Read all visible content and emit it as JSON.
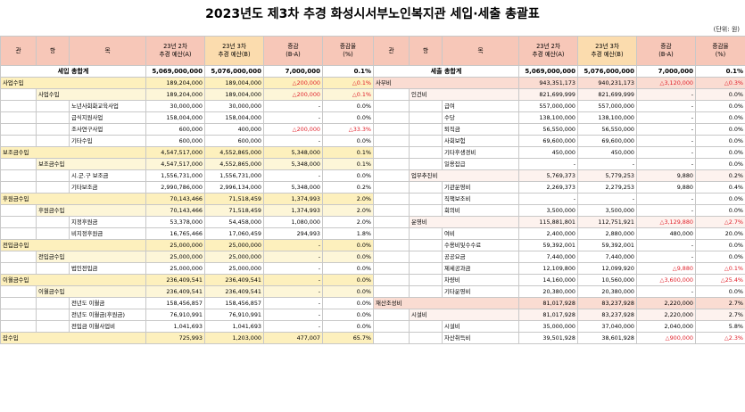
{
  "title": "2023년도 제3차 추경 화성시서부노인복지관 세입·세출 총괄표",
  "unit": "(단위: 원)",
  "headers_left": [
    "관",
    "항",
    "목",
    "23년 2차\n추경 예산(A)",
    "23년 3차\n추경 예산(B)",
    "증감\n(B-A)",
    "증감율\n(%)"
  ],
  "headers_right": [
    "관",
    "항",
    "목",
    "23년 2차\n추경 예산(A)",
    "23년 3차\n추경 예산(B)",
    "증감\n(B-A)",
    "증감율\n(%)"
  ],
  "left_total": {
    "label": "세입 총합계",
    "a": "5,069,000,000",
    "b": "5,076,000,000",
    "d": "7,000,000",
    "p": "0.1%"
  },
  "right_total": {
    "label": "세출 총합계",
    "a": "5,069,000,000",
    "b": "5,076,000,000",
    "d": "7,000,000",
    "p": "0.1%"
  },
  "left_rows": [
    {
      "lvl": 1,
      "gwan": "사업수입",
      "hang": "",
      "mok": "",
      "a": "189,204,000",
      "b": "189,004,000",
      "d": "△200,000",
      "p": "△0.1%",
      "red": true
    },
    {
      "lvl": 2,
      "gwan": "",
      "hang": "사업수입",
      "mok": "",
      "a": "189,204,000",
      "b": "189,004,000",
      "d": "△200,000",
      "p": "△0.1%",
      "red": true
    },
    {
      "lvl": 3,
      "gwan": "",
      "hang": "",
      "mok": "노년사회화교육사업",
      "a": "30,000,000",
      "b": "30,000,000",
      "d": "-",
      "p": "0.0%"
    },
    {
      "lvl": 3,
      "gwan": "",
      "hang": "",
      "mok": "급식지원사업",
      "a": "158,004,000",
      "b": "158,004,000",
      "d": "-",
      "p": "0.0%"
    },
    {
      "lvl": 3,
      "gwan": "",
      "hang": "",
      "mok": "조사연구사업",
      "a": "600,000",
      "b": "400,000",
      "d": "△200,000",
      "p": "△33.3%",
      "red": true
    },
    {
      "lvl": 3,
      "gwan": "",
      "hang": "",
      "mok": "기타수입",
      "a": "600,000",
      "b": "600,000",
      "d": "-",
      "p": "0.0%"
    },
    {
      "lvl": 1,
      "gwan": "보조금수입",
      "hang": "",
      "mok": "",
      "a": "4,547,517,000",
      "b": "4,552,865,000",
      "d": "5,348,000",
      "p": "0.1%"
    },
    {
      "lvl": 2,
      "gwan": "",
      "hang": "보조금수입",
      "mok": "",
      "a": "4,547,517,000",
      "b": "4,552,865,000",
      "d": "5,348,000",
      "p": "0.1%"
    },
    {
      "lvl": 3,
      "gwan": "",
      "hang": "",
      "mok": "시.군.구 보조금",
      "a": "1,556,731,000",
      "b": "1,556,731,000",
      "d": "-",
      "p": "0.0%"
    },
    {
      "lvl": 3,
      "gwan": "",
      "hang": "",
      "mok": "기타보조금",
      "a": "2,990,786,000",
      "b": "2,996,134,000",
      "d": "5,348,000",
      "p": "0.2%"
    },
    {
      "lvl": 1,
      "gwan": "후원금수입",
      "hang": "",
      "mok": "",
      "a": "70,143,466",
      "b": "71,518,459",
      "d": "1,374,993",
      "p": "2.0%"
    },
    {
      "lvl": 2,
      "gwan": "",
      "hang": "후원금수입",
      "mok": "",
      "a": "70,143,466",
      "b": "71,518,459",
      "d": "1,374,993",
      "p": "2.0%"
    },
    {
      "lvl": 3,
      "gwan": "",
      "hang": "",
      "mok": "지정후원금",
      "a": "53,378,000",
      "b": "54,458,000",
      "d": "1,080,000",
      "p": "2.0%"
    },
    {
      "lvl": 3,
      "gwan": "",
      "hang": "",
      "mok": "비지정후원금",
      "a": "16,765,466",
      "b": "17,060,459",
      "d": "294,993",
      "p": "1.8%"
    },
    {
      "lvl": 1,
      "gwan": "전입금수입",
      "hang": "",
      "mok": "",
      "a": "25,000,000",
      "b": "25,000,000",
      "d": "-",
      "p": "0.0%"
    },
    {
      "lvl": 2,
      "gwan": "",
      "hang": "전입금수입",
      "mok": "",
      "a": "25,000,000",
      "b": "25,000,000",
      "d": "-",
      "p": "0.0%"
    },
    {
      "lvl": 3,
      "gwan": "",
      "hang": "",
      "mok": "법인전입금",
      "a": "25,000,000",
      "b": "25,000,000",
      "d": "-",
      "p": "0.0%"
    },
    {
      "lvl": 1,
      "gwan": "이월금수입",
      "hang": "",
      "mok": "",
      "a": "236,409,541",
      "b": "236,409,541",
      "d": "-",
      "p": "0.0%"
    },
    {
      "lvl": 2,
      "gwan": "",
      "hang": "이월금수입",
      "mok": "",
      "a": "236,409,541",
      "b": "236,409,541",
      "d": "-",
      "p": "0.0%"
    },
    {
      "lvl": 3,
      "gwan": "",
      "hang": "",
      "mok": "전년도 이월금",
      "a": "158,456,857",
      "b": "158,456,857",
      "d": "-",
      "p": "0.0%"
    },
    {
      "lvl": 3,
      "gwan": "",
      "hang": "",
      "mok": "전년도 이월금(후원금)",
      "a": "76,910,991",
      "b": "76,910,991",
      "d": "-",
      "p": "0.0%"
    },
    {
      "lvl": 3,
      "gwan": "",
      "hang": "",
      "mok": "전입금 이월사업비",
      "a": "1,041,693",
      "b": "1,041,693",
      "d": "-",
      "p": "0.0%"
    },
    {
      "lvl": 1,
      "gwan": "잡수입",
      "hang": "",
      "mok": "",
      "a": "725,993",
      "b": "1,203,000",
      "d": "477,007",
      "p": "65.7%"
    }
  ],
  "right_rows": [
    {
      "lvl": 1,
      "gwan": "사무비",
      "hang": "",
      "mok": "",
      "a": "943,351,173",
      "b": "940,231,173",
      "d": "△3,120,000",
      "p": "△0.3%",
      "red": true
    },
    {
      "lvl": 2,
      "gwan": "",
      "hang": "인건비",
      "mok": "",
      "a": "821,699,999",
      "b": "821,699,999",
      "d": "-",
      "p": "0.0%"
    },
    {
      "lvl": 3,
      "gwan": "",
      "hang": "",
      "mok": "급여",
      "a": "557,000,000",
      "b": "557,000,000",
      "d": "-",
      "p": "0.0%"
    },
    {
      "lvl": 3,
      "gwan": "",
      "hang": "",
      "mok": "수당",
      "a": "138,100,000",
      "b": "138,100,000",
      "d": "-",
      "p": "0.0%"
    },
    {
      "lvl": 3,
      "gwan": "",
      "hang": "",
      "mok": "퇴직금",
      "a": "56,550,000",
      "b": "56,550,000",
      "d": "-",
      "p": "0.0%"
    },
    {
      "lvl": 3,
      "gwan": "",
      "hang": "",
      "mok": "사회보험",
      "a": "69,600,000",
      "b": "69,600,000",
      "d": "-",
      "p": "0.0%"
    },
    {
      "lvl": 3,
      "gwan": "",
      "hang": "",
      "mok": "기타후생경비",
      "a": "450,000",
      "b": "450,000",
      "d": "-",
      "p": "0.0%"
    },
    {
      "lvl": 3,
      "gwan": "",
      "hang": "",
      "mok": "일용잡급",
      "a": "-",
      "b": "-",
      "d": "-",
      "p": "0.0%"
    },
    {
      "lvl": 2,
      "gwan": "",
      "hang": "업무추진비",
      "mok": "",
      "a": "5,769,373",
      "b": "5,779,253",
      "d": "9,880",
      "p": "0.2%"
    },
    {
      "lvl": 3,
      "gwan": "",
      "hang": "",
      "mok": "기관운영비",
      "a": "2,269,373",
      "b": "2,279,253",
      "d": "9,880",
      "p": "0.4%"
    },
    {
      "lvl": 3,
      "gwan": "",
      "hang": "",
      "mok": "직책보조비",
      "a": "-",
      "b": "-",
      "d": "-",
      "p": "0.0%"
    },
    {
      "lvl": 3,
      "gwan": "",
      "hang": "",
      "mok": "회의비",
      "a": "3,500,000",
      "b": "3,500,000",
      "d": "-",
      "p": "0.0%"
    },
    {
      "lvl": 2,
      "gwan": "",
      "hang": "운영비",
      "mok": "",
      "a": "115,881,801",
      "b": "112,751,921",
      "d": "△3,129,880",
      "p": "△2.7%",
      "red": true
    },
    {
      "lvl": 3,
      "gwan": "",
      "hang": "",
      "mok": "여비",
      "a": "2,400,000",
      "b": "2,880,000",
      "d": "480,000",
      "p": "20.0%"
    },
    {
      "lvl": 3,
      "gwan": "",
      "hang": "",
      "mok": "수용비및수수료",
      "a": "59,392,001",
      "b": "59,392,001",
      "d": "-",
      "p": "0.0%"
    },
    {
      "lvl": 3,
      "gwan": "",
      "hang": "",
      "mok": "공공요금",
      "a": "7,440,000",
      "b": "7,440,000",
      "d": "-",
      "p": "0.0%"
    },
    {
      "lvl": 3,
      "gwan": "",
      "hang": "",
      "mok": "제세공과금",
      "a": "12,109,800",
      "b": "12,099,920",
      "d": "△9,880",
      "p": "△0.1%",
      "red": true
    },
    {
      "lvl": 3,
      "gwan": "",
      "hang": "",
      "mok": "차량비",
      "a": "14,160,000",
      "b": "10,560,000",
      "d": "△3,600,000",
      "p": "△25.4%",
      "red": true
    },
    {
      "lvl": 3,
      "gwan": "",
      "hang": "",
      "mok": "기타운영비",
      "a": "20,380,000",
      "b": "20,380,000",
      "d": "-",
      "p": "0.0%"
    },
    {
      "lvl": 1,
      "gwan": "재산조성비",
      "hang": "",
      "mok": "",
      "a": "81,017,928",
      "b": "83,237,928",
      "d": "2,220,000",
      "p": "2.7%"
    },
    {
      "lvl": 2,
      "gwan": "",
      "hang": "시설비",
      "mok": "",
      "a": "81,017,928",
      "b": "83,237,928",
      "d": "2,220,000",
      "p": "2.7%"
    },
    {
      "lvl": 3,
      "gwan": "",
      "hang": "",
      "mok": "시설비",
      "a": "35,000,000",
      "b": "37,040,000",
      "d": "2,040,000",
      "p": "5.8%"
    },
    {
      "lvl": 3,
      "gwan": "",
      "hang": "",
      "mok": "자산취득비",
      "a": "39,501,928",
      "b": "38,601,928",
      "d": "△900,000",
      "p": "△2.3%",
      "red": true
    }
  ]
}
